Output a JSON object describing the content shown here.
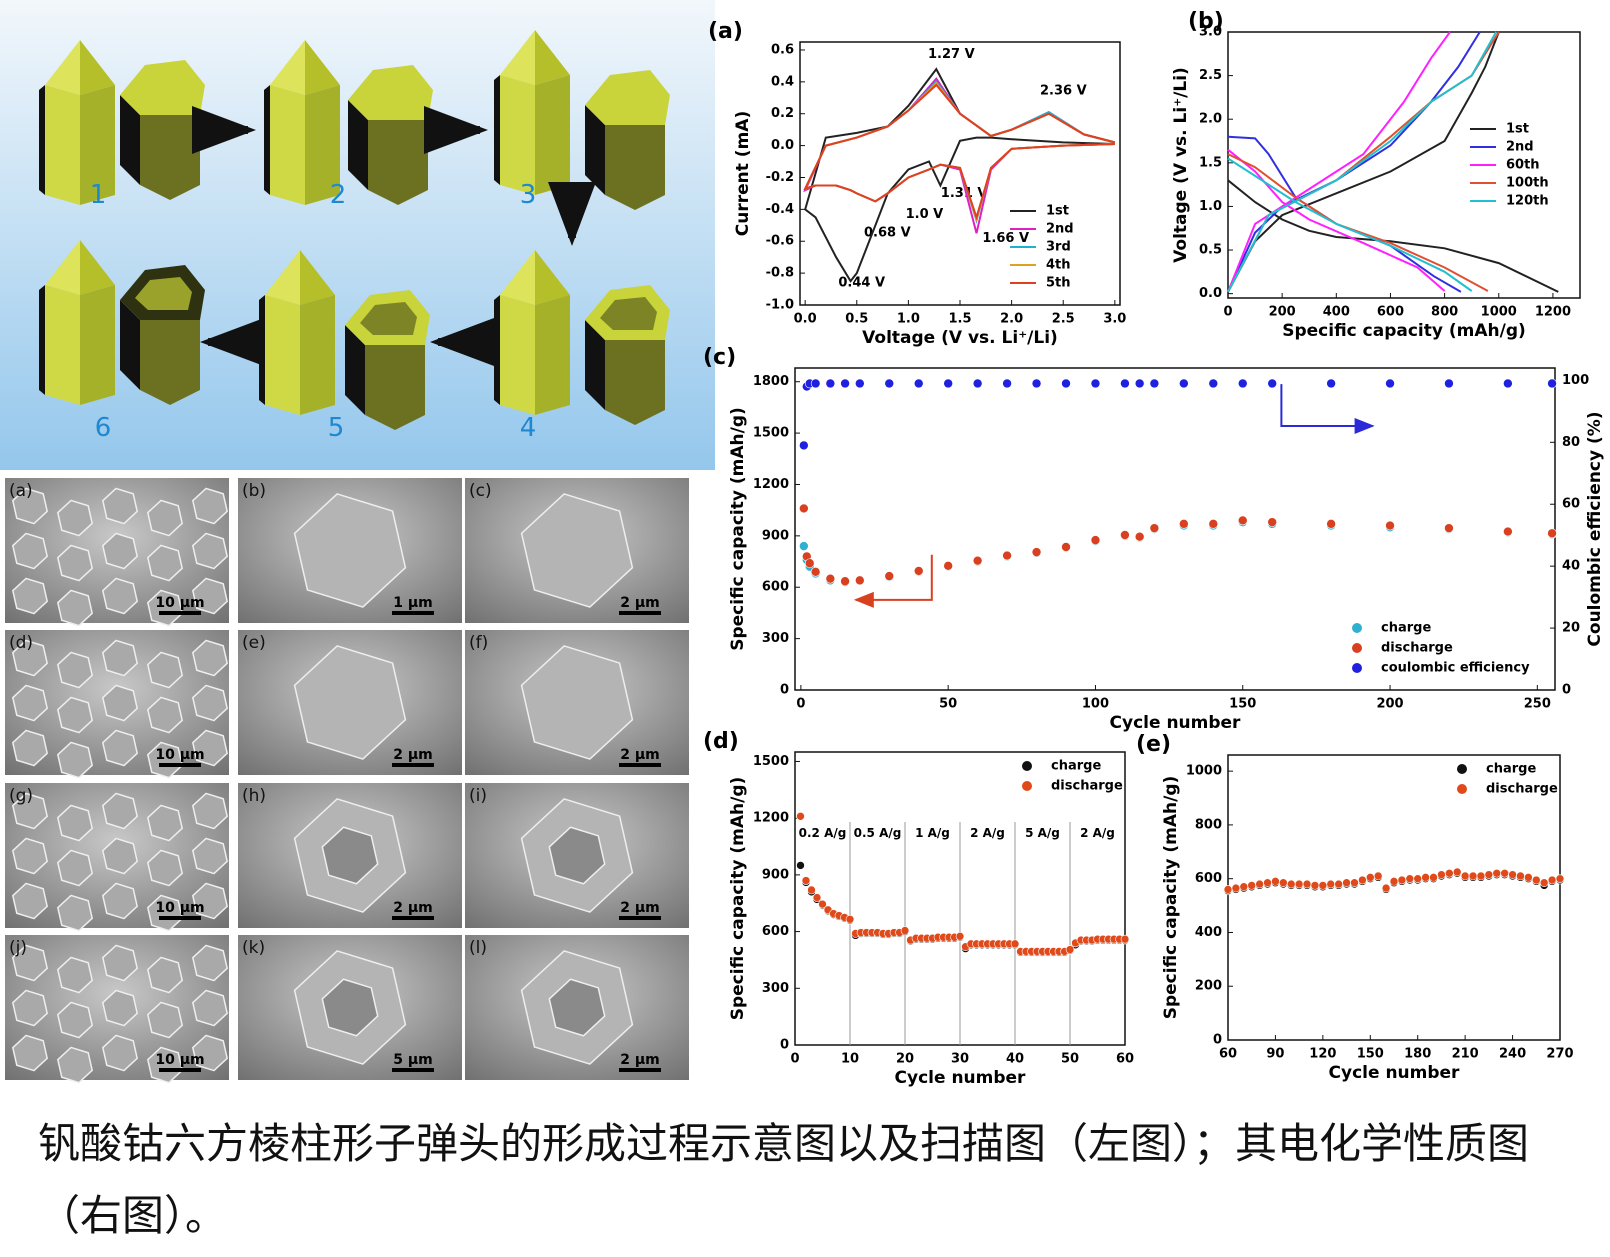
{
  "schematic": {
    "stages": [
      "1",
      "2",
      "3",
      "4",
      "5",
      "6"
    ]
  },
  "sem": {
    "panels": [
      {
        "label": "(a)",
        "scale": "10 μm"
      },
      {
        "label": "(b)",
        "scale": "1 μm"
      },
      {
        "label": "(c)",
        "scale": "2 μm"
      },
      {
        "label": "(d)",
        "scale": "10 μm"
      },
      {
        "label": "(e)",
        "scale": "2 μm"
      },
      {
        "label": "(f)",
        "scale": "2 μm"
      },
      {
        "label": "(g)",
        "scale": "10 μm"
      },
      {
        "label": "(h)",
        "scale": "2 μm"
      },
      {
        "label": "(i)",
        "scale": "2 μm"
      },
      {
        "label": "(j)",
        "scale": "10 μm"
      },
      {
        "label": "(k)",
        "scale": "5 μm"
      },
      {
        "label": "(l)",
        "scale": "2 μm"
      }
    ]
  },
  "caption": "钒酸钴六方棱柱形子弹头的形成过程示意图以及扫描图（左图）；其电化学性质图（右图）。",
  "chart_data": [
    {
      "type": "line",
      "panel_label": "(a)",
      "xlabel": "Voltage (V vs. Li⁺/Li)",
      "ylabel": "Current (mA)",
      "x": [
        3.0,
        2.5,
        2.0,
        1.8,
        1.66,
        1.5,
        1.31,
        1.2,
        1.0,
        0.8,
        0.68,
        0.5,
        0.44,
        0.3,
        0.1,
        0.0,
        0.2,
        0.5,
        0.8,
        1.0,
        1.27,
        1.5,
        1.8,
        2.0,
        2.36,
        2.7,
        3.0
      ],
      "series": [
        {
          "name": "1st",
          "color": "#222222",
          "values": [
            0.01,
            0.02,
            0.04,
            0.05,
            0.05,
            0.03,
            -0.25,
            -0.1,
            -0.15,
            -0.3,
            -0.5,
            -0.8,
            -0.85,
            -0.7,
            -0.45,
            -0.4,
            0.05,
            0.08,
            0.12,
            0.25,
            0.48,
            0.2,
            0.06,
            0.1,
            0.2,
            0.07,
            0.02
          ]
        },
        {
          "name": "2nd",
          "color": "#e020c0",
          "values": [
            0.01,
            0.0,
            -0.02,
            -0.15,
            -0.55,
            -0.15,
            -0.12,
            -0.15,
            -0.2,
            -0.3,
            -0.35,
            -0.3,
            -0.28,
            -0.25,
            -0.25,
            -0.28,
            0.0,
            0.05,
            0.12,
            0.22,
            0.42,
            0.2,
            0.06,
            0.1,
            0.21,
            0.07,
            0.02
          ]
        },
        {
          "name": "3rd",
          "color": "#20b0d0",
          "values": [
            0.01,
            0.0,
            -0.02,
            -0.14,
            -0.47,
            -0.14,
            -0.12,
            -0.15,
            -0.2,
            -0.3,
            -0.35,
            -0.3,
            -0.28,
            -0.25,
            -0.25,
            -0.27,
            0.0,
            0.05,
            0.12,
            0.22,
            0.4,
            0.2,
            0.06,
            0.1,
            0.21,
            0.07,
            0.02
          ]
        },
        {
          "name": "4th",
          "color": "#e0a020",
          "values": [
            0.01,
            0.0,
            -0.02,
            -0.14,
            -0.46,
            -0.14,
            -0.12,
            -0.15,
            -0.2,
            -0.3,
            -0.35,
            -0.3,
            -0.28,
            -0.25,
            -0.25,
            -0.27,
            0.0,
            0.05,
            0.12,
            0.22,
            0.39,
            0.2,
            0.06,
            0.1,
            0.2,
            0.07,
            0.02
          ]
        },
        {
          "name": "5th",
          "color": "#e04020",
          "values": [
            0.01,
            0.0,
            -0.02,
            -0.14,
            -0.45,
            -0.14,
            -0.12,
            -0.15,
            -0.2,
            -0.3,
            -0.35,
            -0.3,
            -0.28,
            -0.25,
            -0.25,
            -0.27,
            0.0,
            0.05,
            0.12,
            0.22,
            0.38,
            0.2,
            0.06,
            0.1,
            0.2,
            0.07,
            0.02
          ]
        }
      ],
      "xlim": [
        -0.05,
        3.05
      ],
      "xticks": [
        {
          "value": 0,
          "label": "0.0"
        },
        {
          "value": 0.5,
          "label": "0.5"
        },
        {
          "value": 1,
          "label": "1.0"
        },
        {
          "value": 1.5,
          "label": "1.5"
        },
        {
          "value": 2,
          "label": "2.0"
        },
        {
          "value": 2.5,
          "label": "2.5"
        },
        {
          "value": 3,
          "label": "3.0"
        }
      ],
      "ylim": [
        -1.0,
        0.65
      ],
      "yticks": [
        {
          "value": -1,
          "label": "-1.0"
        },
        {
          "value": -0.8,
          "label": "-0.8"
        },
        {
          "value": -0.6,
          "label": "-0.6"
        },
        {
          "value": -0.4,
          "label": "-0.4"
        },
        {
          "value": -0.2,
          "label": "-0.2"
        },
        {
          "value": 0,
          "label": "0.0"
        },
        {
          "value": 0.2,
          "label": "0.2"
        },
        {
          "value": 0.4,
          "label": "0.4"
        },
        {
          "value": 0.6,
          "label": "0.6"
        }
      ],
      "legend": "lower right",
      "annotations": [
        "1.27 V",
        "2.36 V",
        "1.31 V",
        "1.0 V",
        "0.68 V",
        "1.66 V",
        "0.44 V"
      ]
    },
    {
      "type": "line",
      "panel_label": "(b)",
      "xlabel": "Specific capacity (mAh/g)",
      "ylabel": "Voltage (V vs. Li⁺/Li)",
      "series": [
        {
          "name": "1st",
          "color": "#222222",
          "x": [
            0,
            100,
            200,
            300,
            400,
            600,
            800,
            1000,
            1220,
            null,
            0,
            100,
            200,
            400,
            600,
            800,
            900,
            950,
            1000
          ],
          "values": [
            1.3,
            1.05,
            0.85,
            0.72,
            0.65,
            0.6,
            0.52,
            0.35,
            0.02,
            null,
            0.02,
            0.6,
            0.9,
            1.15,
            1.4,
            1.75,
            2.3,
            2.6,
            3.0
          ]
        },
        {
          "name": "2nd",
          "color": "#3030e0",
          "x": [
            0,
            100,
            150,
            250,
            400,
            600,
            760,
            860,
            null,
            0,
            100,
            200,
            400,
            600,
            750,
            850,
            930
          ],
          "values": [
            1.8,
            1.78,
            1.6,
            1.1,
            0.8,
            0.55,
            0.2,
            0.02,
            null,
            0.02,
            0.7,
            1.0,
            1.3,
            1.7,
            2.2,
            2.6,
            3.0
          ]
        },
        {
          "name": "60th",
          "color": "#ff20ff",
          "x": [
            0,
            100,
            200,
            300,
            500,
            700,
            800,
            null,
            0,
            100,
            300,
            500,
            650,
            750,
            820
          ],
          "values": [
            1.65,
            1.4,
            1.05,
            0.85,
            0.58,
            0.3,
            0.03,
            null,
            0.02,
            0.8,
            1.2,
            1.6,
            2.2,
            2.7,
            3.0
          ]
        },
        {
          "name": "100th",
          "color": "#e05030",
          "x": [
            0,
            100,
            250,
            400,
            600,
            800,
            960,
            null,
            0,
            150,
            400,
            600,
            750,
            900,
            1000
          ],
          "values": [
            1.6,
            1.45,
            1.1,
            0.8,
            0.58,
            0.3,
            0.03,
            null,
            0.02,
            0.9,
            1.3,
            1.8,
            2.2,
            2.5,
            3.0
          ]
        },
        {
          "name": "120th",
          "color": "#20c0d0",
          "x": [
            0,
            100,
            250,
            400,
            600,
            800,
            900,
            null,
            0,
            150,
            400,
            600,
            750,
            900,
            990
          ],
          "values": [
            1.55,
            1.35,
            1.05,
            0.8,
            0.55,
            0.25,
            0.03,
            null,
            0.02,
            0.9,
            1.3,
            1.75,
            2.2,
            2.5,
            3.0
          ]
        }
      ],
      "xlim": [
        0,
        1300
      ],
      "xticks": [
        0,
        200,
        400,
        600,
        800,
        1000,
        1200
      ],
      "ylim": [
        -0.05,
        3.0
      ],
      "yticks": [
        {
          "value": 0,
          "label": "0.0"
        },
        {
          "value": 0.5,
          "label": "0.5"
        },
        {
          "value": 1,
          "label": "1.0"
        },
        {
          "value": 1.5,
          "label": "1.5"
        },
        {
          "value": 2,
          "label": "2.0"
        },
        {
          "value": 2.5,
          "label": "2.5"
        },
        {
          "value": 3,
          "label": "3.0"
        }
      ],
      "legend": "center right"
    },
    {
      "type": "scatter",
      "panel_label": "(c)",
      "xlabel": "Cycle number",
      "ylabel": "Specific capacity (mAh/g)",
      "y2label": "Coulombic efficiency (%)",
      "x": [
        1,
        2,
        3,
        5,
        10,
        15,
        20,
        30,
        40,
        50,
        60,
        70,
        80,
        90,
        100,
        110,
        115,
        120,
        130,
        140,
        150,
        160,
        180,
        200,
        220,
        240,
        255
      ],
      "series": [
        {
          "name": "charge",
          "color": "#30b0d0",
          "values": [
            840,
            760,
            720,
            680,
            640,
            630,
            640,
            660,
            690,
            720,
            750,
            780,
            800,
            830,
            870,
            900,
            890,
            940,
            960,
            960,
            980,
            970,
            960,
            950,
            940,
            920,
            910
          ]
        },
        {
          "name": "discharge",
          "color": "#d84020",
          "values": [
            1060,
            780,
            740,
            690,
            650,
            635,
            640,
            665,
            695,
            725,
            755,
            785,
            805,
            835,
            875,
            905,
            895,
            945,
            970,
            970,
            990,
            980,
            970,
            960,
            945,
            925,
            915
          ]
        },
        {
          "name": "coulombic efficiency",
          "color": "#2020e0",
          "axis": "y2",
          "values": [
            79,
            98,
            99,
            99,
            99,
            99,
            99,
            99,
            99,
            99,
            99,
            99,
            99,
            99,
            99,
            99,
            99,
            99,
            99,
            99,
            99,
            99,
            99,
            99,
            99,
            99,
            99
          ]
        }
      ],
      "xlim": [
        -2,
        256
      ],
      "xticks": [
        0,
        50,
        100,
        150,
        200,
        250
      ],
      "ylim": [
        0,
        1880
      ],
      "yticks": [
        0,
        300,
        600,
        900,
        1200,
        1500,
        1800
      ],
      "y2lim": [
        0,
        104
      ],
      "y2ticks": [
        0,
        20,
        40,
        60,
        80,
        100
      ],
      "legend": "lower right"
    },
    {
      "type": "scatter",
      "panel_label": "(d)",
      "xlabel": "Cycle number",
      "ylabel": "Specific capacity (mAh/g)",
      "x": [
        1,
        2,
        3,
        4,
        5,
        6,
        7,
        8,
        9,
        10,
        11,
        12,
        13,
        14,
        15,
        16,
        17,
        18,
        19,
        20,
        21,
        22,
        23,
        24,
        25,
        26,
        27,
        28,
        29,
        30,
        31,
        32,
        33,
        34,
        35,
        36,
        37,
        38,
        39,
        40,
        41,
        42,
        43,
        44,
        45,
        46,
        47,
        48,
        49,
        50,
        51,
        52,
        53,
        54,
        55,
        56,
        57,
        58,
        59,
        60
      ],
      "series": [
        {
          "name": "charge",
          "color": "#111111",
          "values": [
            950,
            860,
            810,
            770,
            740,
            710,
            690,
            680,
            670,
            660,
            580,
            590,
            590,
            590,
            590,
            585,
            585,
            590,
            590,
            600,
            550,
            560,
            560,
            560,
            560,
            565,
            565,
            565,
            565,
            570,
            510,
            530,
            530,
            530,
            530,
            530,
            530,
            530,
            530,
            530,
            490,
            490,
            490,
            490,
            490,
            490,
            490,
            490,
            490,
            500,
            530,
            550,
            550,
            550,
            555,
            555,
            555,
            555,
            555,
            555
          ]
        },
        {
          "name": "discharge",
          "color": "#e04a1a",
          "values": [
            1210,
            870,
            820,
            780,
            745,
            715,
            695,
            685,
            675,
            665,
            590,
            595,
            595,
            595,
            595,
            590,
            590,
            595,
            595,
            605,
            555,
            565,
            565,
            565,
            565,
            570,
            570,
            570,
            570,
            575,
            520,
            535,
            535,
            535,
            535,
            535,
            535,
            535,
            535,
            535,
            495,
            495,
            495,
            495,
            495,
            495,
            495,
            495,
            495,
            505,
            540,
            555,
            555,
            555,
            560,
            560,
            560,
            560,
            560,
            560
          ]
        }
      ],
      "xlim": [
        0,
        60
      ],
      "xticks": [
        0,
        10,
        20,
        30,
        40,
        50,
        60
      ],
      "ylim": [
        0,
        1550
      ],
      "yticks": [
        0,
        300,
        600,
        900,
        1200,
        1500
      ],
      "legend": "upper right",
      "annotations": [
        "0.2 A/g",
        "0.5 A/g",
        "1 A/g",
        "2 A/g",
        "5 A/g",
        "2 A/g"
      ]
    },
    {
      "type": "scatter",
      "panel_label": "(e)",
      "xlabel": "Cycle number",
      "ylabel": "Specific capacity (mAh/g)",
      "x": [
        60,
        65,
        70,
        75,
        80,
        85,
        90,
        95,
        100,
        105,
        110,
        115,
        120,
        125,
        130,
        135,
        140,
        145,
        150,
        155,
        160,
        165,
        170,
        175,
        180,
        185,
        190,
        195,
        200,
        205,
        210,
        215,
        220,
        225,
        230,
        235,
        240,
        245,
        250,
        255,
        260,
        265,
        270
      ],
      "series": [
        {
          "name": "charge",
          "color": "#111111",
          "values": [
            555,
            560,
            565,
            570,
            575,
            580,
            585,
            580,
            575,
            575,
            575,
            570,
            570,
            575,
            575,
            580,
            580,
            590,
            600,
            605,
            560,
            585,
            590,
            595,
            595,
            600,
            600,
            610,
            615,
            620,
            605,
            605,
            605,
            610,
            615,
            615,
            610,
            605,
            600,
            590,
            575,
            590,
            595
          ]
        },
        {
          "name": "discharge",
          "color": "#e04a1a",
          "values": [
            560,
            565,
            570,
            575,
            580,
            585,
            590,
            585,
            580,
            580,
            580,
            575,
            575,
            580,
            580,
            585,
            585,
            595,
            605,
            610,
            565,
            590,
            595,
            600,
            600,
            605,
            605,
            615,
            620,
            625,
            610,
            610,
            610,
            615,
            620,
            620,
            615,
            610,
            605,
            595,
            585,
            595,
            600
          ]
        }
      ],
      "xlim": [
        60,
        270
      ],
      "xticks": [
        60,
        90,
        120,
        150,
        180,
        210,
        240,
        270
      ],
      "ylim": [
        0,
        1060
      ],
      "yticks": [
        0,
        200,
        400,
        600,
        800,
        1000
      ],
      "legend": "upper right"
    }
  ]
}
